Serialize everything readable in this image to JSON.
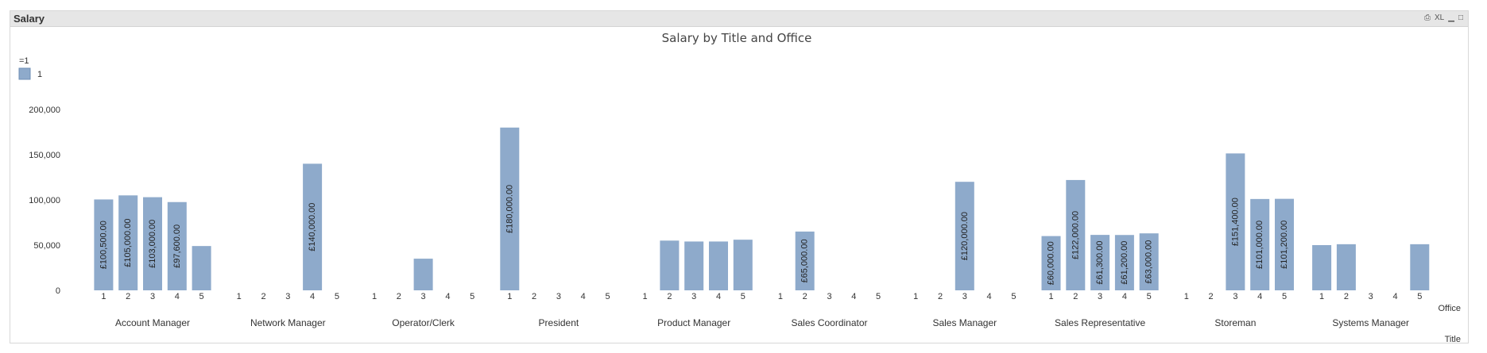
{
  "window": {
    "caption": "Salary",
    "icons": [
      {
        "name": "print-icon",
        "glyph": "⎙"
      },
      {
        "name": "excel-export-icon",
        "glyph": "XL"
      },
      {
        "name": "minimize-icon",
        "glyph": "▁"
      },
      {
        "name": "maximize-icon",
        "glyph": "□"
      }
    ]
  },
  "chart_data": {
    "type": "bar",
    "title": "Salary by Title and Office",
    "legend": {
      "title": "=1",
      "items": [
        {
          "label": "1",
          "color": "#8eaacb"
        }
      ],
      "position": "top-left"
    },
    "xlabel_inner": "Office",
    "xlabel_outer": "Title",
    "ylim": [
      0,
      200000
    ],
    "yticks": [
      0,
      50000,
      100000,
      150000,
      200000
    ],
    "ytick_labels": [
      "0",
      "50,000",
      "100,000",
      "150,000",
      "200,000"
    ],
    "grid": false,
    "bar_color": "#8eaacb",
    "groups": [
      {
        "title": "Account Manager",
        "offices": [
          "1",
          "2",
          "3",
          "4",
          "5"
        ],
        "values": [
          100500,
          105000,
          103000,
          97600,
          49000
        ],
        "labels": [
          "£100,500.00",
          "£105,000.00",
          "£103,000.00",
          "£97,600.00",
          ""
        ]
      },
      {
        "title": "Network Manager",
        "offices": [
          "1",
          "2",
          "3",
          "4",
          "5"
        ],
        "values": [
          null,
          null,
          null,
          140000,
          null
        ],
        "labels": [
          "",
          "",
          "",
          "£140,000.00",
          ""
        ]
      },
      {
        "title": "Operator/Clerk",
        "offices": [
          "1",
          "2",
          "3",
          "4",
          "5"
        ],
        "values": [
          null,
          null,
          35000,
          null,
          null
        ],
        "labels": [
          "",
          "",
          "",
          "",
          ""
        ]
      },
      {
        "title": "President",
        "offices": [
          "1",
          "2",
          "3",
          "4",
          "5"
        ],
        "values": [
          180000,
          null,
          null,
          null,
          null
        ],
        "labels": [
          "£180,000.00",
          "",
          "",
          "",
          ""
        ]
      },
      {
        "title": "Product Manager",
        "offices": [
          "1",
          "2",
          "3",
          "4",
          "5"
        ],
        "values": [
          null,
          55000,
          54000,
          54000,
          56000
        ],
        "labels": [
          "",
          "",
          "",
          "",
          ""
        ]
      },
      {
        "title": "Sales Coordinator",
        "offices": [
          "1",
          "2",
          "3",
          "4",
          "5"
        ],
        "values": [
          null,
          65000,
          null,
          null,
          null
        ],
        "labels": [
          "",
          "£65,000.00",
          "",
          "",
          ""
        ]
      },
      {
        "title": "Sales Manager",
        "offices": [
          "1",
          "2",
          "3",
          "4",
          "5"
        ],
        "values": [
          null,
          null,
          120000,
          null,
          null
        ],
        "labels": [
          "",
          "",
          "£120,000.00",
          "",
          ""
        ]
      },
      {
        "title": "Sales Representative",
        "offices": [
          "1",
          "2",
          "3",
          "4",
          "5"
        ],
        "values": [
          60000,
          122000,
          61300,
          61200,
          63000
        ],
        "labels": [
          "£60,000.00",
          "£122,000.00",
          "£61,300.00",
          "£61,200.00",
          "£63,000.00"
        ]
      },
      {
        "title": "Storeman",
        "offices": [
          "1",
          "2",
          "3",
          "4",
          "5"
        ],
        "values": [
          null,
          null,
          151400,
          101000,
          101200
        ],
        "labels": [
          "",
          "",
          "£151,400.00",
          "£101,000.00",
          "£101,200.00"
        ]
      },
      {
        "title": "Systems Manager",
        "offices": [
          "1",
          "2",
          "3",
          "4",
          "5"
        ],
        "values": [
          50000,
          51000,
          null,
          null,
          51000
        ],
        "labels": [
          "",
          "",
          "",
          "",
          ""
        ]
      }
    ]
  }
}
